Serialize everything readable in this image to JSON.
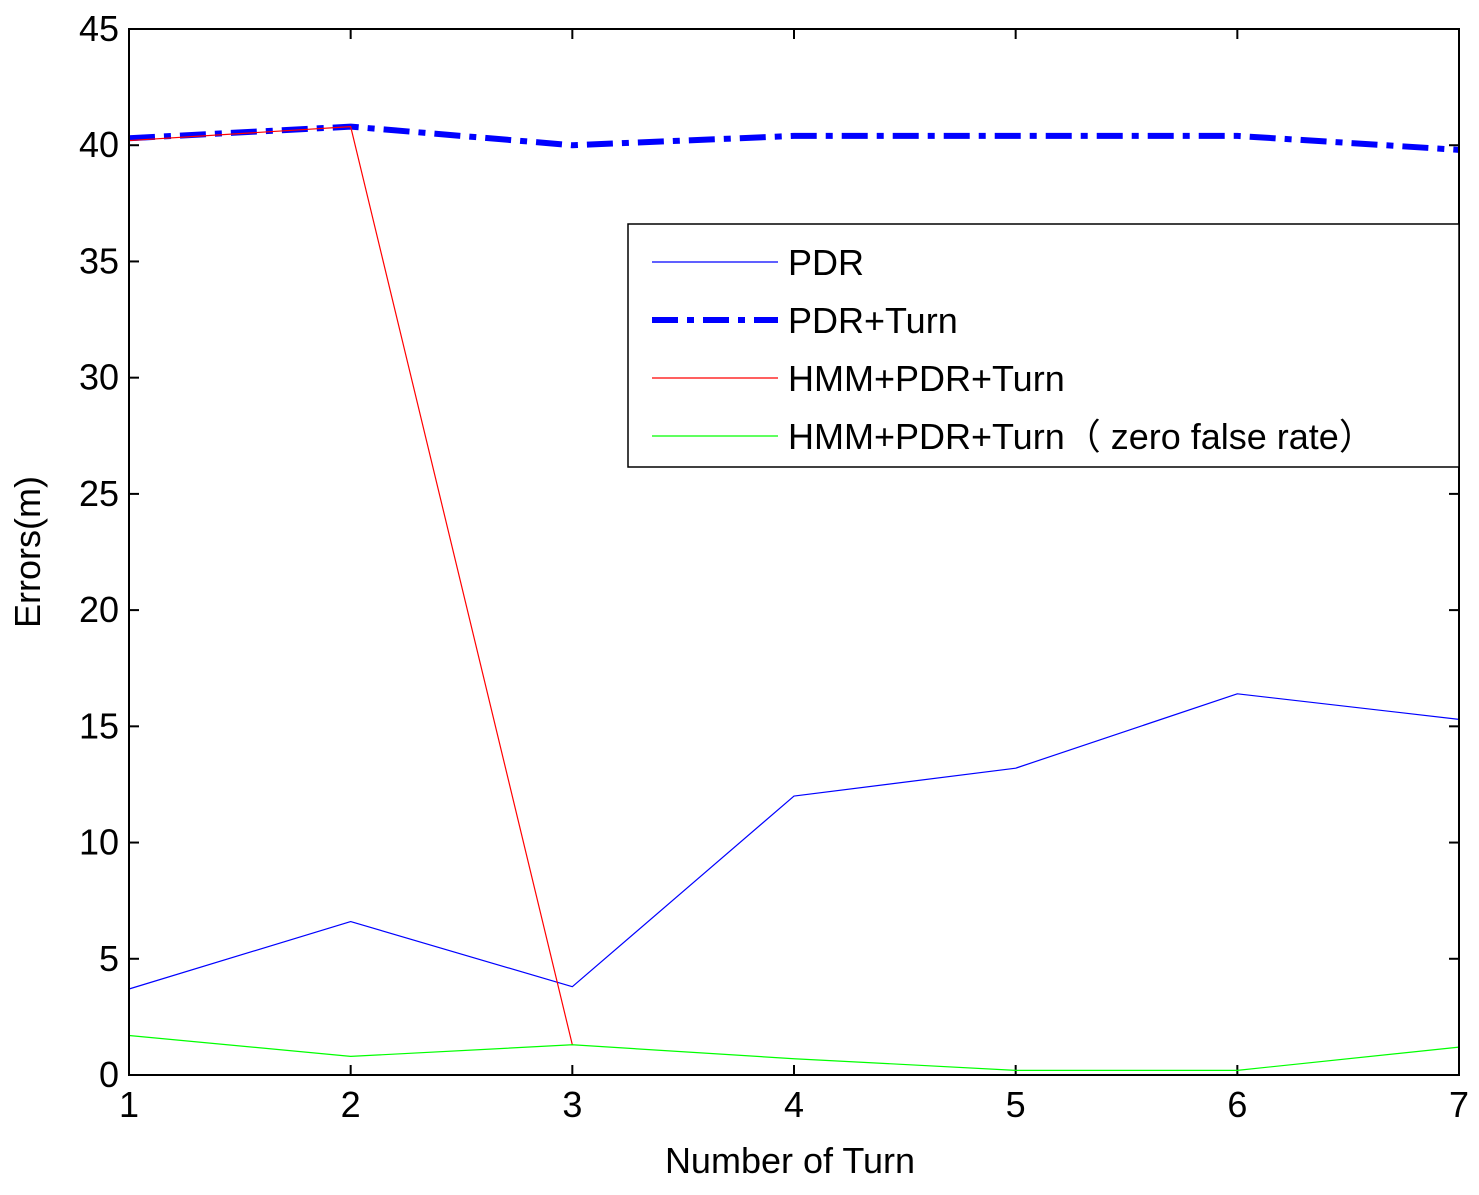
{
  "chart_data": {
    "type": "line",
    "title": "",
    "xlabel": "Number of Turn",
    "ylabel": "Errors(m)",
    "xlim": [
      1,
      7
    ],
    "ylim": [
      0,
      45
    ],
    "x_ticks": [
      1,
      2,
      3,
      4,
      5,
      6,
      7
    ],
    "y_ticks": [
      0,
      5,
      10,
      15,
      20,
      25,
      30,
      35,
      40,
      45
    ],
    "grid": false,
    "legend_position": "top-right",
    "x": [
      1,
      2,
      3,
      4,
      5,
      6,
      7
    ],
    "series": [
      {
        "name": "PDR",
        "color": "#0000ff",
        "style": "solid-thin",
        "values": [
          3.7,
          6.6,
          3.8,
          12.0,
          13.2,
          16.4,
          15.3
        ]
      },
      {
        "name": "PDR+Turn",
        "color": "#0000ff",
        "style": "dash-dot-thick",
        "values": [
          40.3,
          40.8,
          40.0,
          40.4,
          40.4,
          40.4,
          39.8
        ]
      },
      {
        "name": "HMM+PDR+Turn",
        "color": "#ff0000",
        "style": "solid-thin",
        "values": [
          40.2,
          40.8,
          1.3,
          null,
          null,
          null,
          null
        ]
      },
      {
        "name": "HMM+PDR+Turn（ zero false rate）",
        "color": "#00ff00",
        "style": "solid-thin",
        "values": [
          1.7,
          0.8,
          1.3,
          0.7,
          0.2,
          0.2,
          1.2
        ]
      }
    ]
  }
}
